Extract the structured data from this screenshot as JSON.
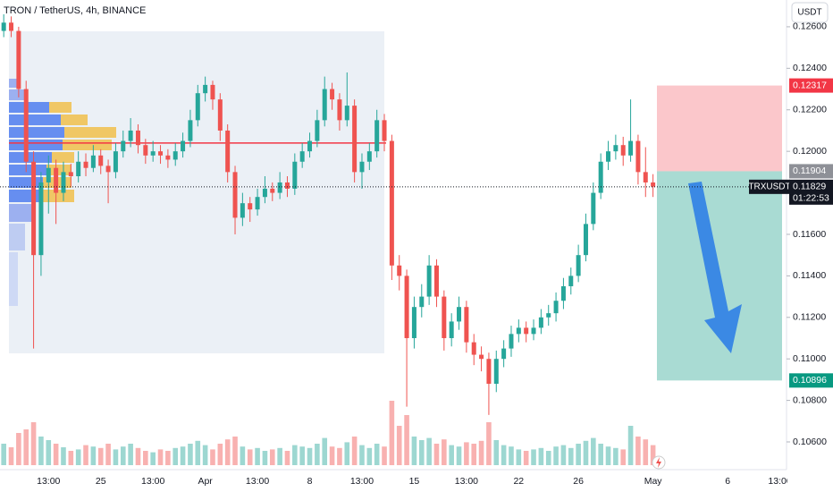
{
  "chart_data": {
    "type": "candlestick",
    "title": "TRON / TetherUS, 4h, BINANCE",
    "currency": "USDT",
    "ylim": [
      0.10488,
      0.12729
    ],
    "yticks": [
      {
        "value": 0.126,
        "label": "0.12600"
      },
      {
        "value": 0.124,
        "label": "0.12400"
      },
      {
        "value": 0.122,
        "label": "0.12200"
      },
      {
        "value": 0.12,
        "label": "0.12000"
      },
      {
        "value": 0.116,
        "label": "0.11600"
      },
      {
        "value": 0.114,
        "label": "0.11400"
      },
      {
        "value": 0.112,
        "label": "0.11200"
      },
      {
        "value": 0.11,
        "label": "0.11000"
      },
      {
        "value": 0.108,
        "label": "0.10800"
      },
      {
        "value": 0.106,
        "label": "0.10600"
      }
    ],
    "categories": [
      null,
      null,
      null,
      null,
      null,
      null,
      "13:00",
      null,
      null,
      null,
      null,
      null,
      null,
      "25",
      null,
      null,
      null,
      null,
      null,
      null,
      "13:00",
      null,
      null,
      null,
      null,
      null,
      null,
      "Apr",
      null,
      null,
      null,
      null,
      null,
      null,
      "13:00",
      null,
      null,
      null,
      null,
      null,
      null,
      "8",
      null,
      null,
      null,
      null,
      null,
      null,
      "13:00",
      null,
      null,
      null,
      null,
      null,
      null,
      "15",
      null,
      null,
      null,
      null,
      null,
      null,
      "13:00",
      null,
      null,
      null,
      null,
      null,
      null,
      "22",
      null,
      null,
      null,
      null,
      null,
      null,
      null,
      "26",
      null,
      null,
      null,
      null,
      null,
      null,
      null,
      null,
      null,
      "May",
      null,
      null,
      null,
      null,
      null,
      null,
      null,
      null,
      null,
      "6",
      null,
      null,
      null,
      null,
      null,
      null,
      "13:00"
    ],
    "candles": [
      [
        0.1258,
        0.1266,
        0.1255,
        0.1262
      ],
      [
        0.1262,
        0.1265,
        0.1255,
        0.1258
      ],
      [
        0.1258,
        0.126,
        0.1226,
        0.123
      ],
      [
        0.123,
        0.1234,
        0.119,
        0.1195
      ],
      [
        0.1195,
        0.12,
        0.1105,
        0.115
      ],
      [
        0.115,
        0.119,
        0.114,
        0.1185
      ],
      [
        0.1185,
        0.1198,
        0.117,
        0.1192
      ],
      [
        0.1192,
        0.1196,
        0.1165,
        0.118
      ],
      [
        0.118,
        0.1195,
        0.1176,
        0.119
      ],
      [
        0.119,
        0.1194,
        0.1183,
        0.1188
      ],
      [
        0.1188,
        0.12,
        0.1185,
        0.1195
      ],
      [
        0.1195,
        0.1199,
        0.1188,
        0.1192
      ],
      [
        0.1192,
        0.1203,
        0.119,
        0.1198
      ],
      [
        0.1198,
        0.1201,
        0.1189,
        0.1193
      ],
      [
        0.1193,
        0.1196,
        0.1175,
        0.119
      ],
      [
        0.119,
        0.1204,
        0.1187,
        0.12
      ],
      [
        0.12,
        0.121,
        0.1197,
        0.1205
      ],
      [
        0.1205,
        0.1216,
        0.1202,
        0.121
      ],
      [
        0.121,
        0.1213,
        0.1199,
        0.1203
      ],
      [
        0.1203,
        0.1206,
        0.1194,
        0.1198
      ],
      [
        0.1198,
        0.1205,
        0.1195,
        0.12
      ],
      [
        0.12,
        0.1203,
        0.1194,
        0.1198
      ],
      [
        0.1198,
        0.1201,
        0.1192,
        0.1196
      ],
      [
        0.1196,
        0.1204,
        0.1193,
        0.12
      ],
      [
        0.12,
        0.1209,
        0.1197,
        0.1205
      ],
      [
        0.1205,
        0.122,
        0.1202,
        0.1215
      ],
      [
        0.1215,
        0.1232,
        0.1212,
        0.1228
      ],
      [
        0.1228,
        0.1236,
        0.1224,
        0.1232
      ],
      [
        0.1232,
        0.1234,
        0.122,
        0.1225
      ],
      [
        0.1225,
        0.1228,
        0.1205,
        0.121
      ],
      [
        0.121,
        0.1213,
        0.1185,
        0.119
      ],
      [
        0.119,
        0.1193,
        0.116,
        0.1168
      ],
      [
        0.1168,
        0.118,
        0.1164,
        0.1175
      ],
      [
        0.1175,
        0.1178,
        0.1166,
        0.1172
      ],
      [
        0.1172,
        0.1182,
        0.1169,
        0.1178
      ],
      [
        0.1178,
        0.1188,
        0.1175,
        0.1182
      ],
      [
        0.1182,
        0.1185,
        0.1176,
        0.118
      ],
      [
        0.118,
        0.119,
        0.1177,
        0.1185
      ],
      [
        0.1185,
        0.1188,
        0.1178,
        0.1182
      ],
      [
        0.1182,
        0.1199,
        0.1179,
        0.1195
      ],
      [
        0.1195,
        0.1204,
        0.1192,
        0.12
      ],
      [
        0.12,
        0.1209,
        0.1197,
        0.1205
      ],
      [
        0.1205,
        0.122,
        0.1202,
        0.1215
      ],
      [
        0.1215,
        0.1236,
        0.1212,
        0.123
      ],
      [
        0.123,
        0.1233,
        0.122,
        0.1225
      ],
      [
        0.1225,
        0.1228,
        0.121,
        0.1215
      ],
      [
        0.1215,
        0.1238,
        0.1212,
        0.1222
      ],
      [
        0.1222,
        0.1225,
        0.1185,
        0.119
      ],
      [
        0.119,
        0.1199,
        0.1182,
        0.1195
      ],
      [
        0.1195,
        0.1204,
        0.1191,
        0.12
      ],
      [
        0.12,
        0.122,
        0.1197,
        0.1215
      ],
      [
        0.1215,
        0.1218,
        0.12,
        0.1205
      ],
      [
        0.1205,
        0.1208,
        0.1138,
        0.1145
      ],
      [
        0.1145,
        0.115,
        0.1133,
        0.114
      ],
      [
        0.114,
        0.1143,
        0.1077,
        0.111
      ],
      [
        0.111,
        0.113,
        0.1105,
        0.1125
      ],
      [
        0.1125,
        0.1136,
        0.112,
        0.113
      ],
      [
        0.113,
        0.115,
        0.1126,
        0.1145
      ],
      [
        0.1145,
        0.1148,
        0.1125,
        0.113
      ],
      [
        0.113,
        0.1133,
        0.1104,
        0.111
      ],
      [
        0.111,
        0.1122,
        0.1106,
        0.1118
      ],
      [
        0.1118,
        0.113,
        0.1114,
        0.1125
      ],
      [
        0.1125,
        0.1128,
        0.1103,
        0.1108
      ],
      [
        0.1108,
        0.1112,
        0.1097,
        0.1102
      ],
      [
        0.1102,
        0.1106,
        0.1094,
        0.11
      ],
      [
        0.11,
        0.1103,
        0.1073,
        0.1088
      ],
      [
        0.1088,
        0.1104,
        0.1084,
        0.11
      ],
      [
        0.11,
        0.1109,
        0.1096,
        0.1105
      ],
      [
        0.1105,
        0.1116,
        0.1101,
        0.1112
      ],
      [
        0.1112,
        0.1119,
        0.1108,
        0.1115
      ],
      [
        0.1115,
        0.1118,
        0.1108,
        0.1112
      ],
      [
        0.1112,
        0.1119,
        0.1109,
        0.1115
      ],
      [
        0.1115,
        0.1124,
        0.1112,
        0.112
      ],
      [
        0.112,
        0.1126,
        0.1116,
        0.1122
      ],
      [
        0.1122,
        0.1132,
        0.1118,
        0.1128
      ],
      [
        0.1128,
        0.1139,
        0.1124,
        0.1135
      ],
      [
        0.1135,
        0.1144,
        0.1131,
        0.114
      ],
      [
        0.114,
        0.1155,
        0.1137,
        0.115
      ],
      [
        0.115,
        0.117,
        0.1147,
        0.1165
      ],
      [
        0.1165,
        0.1185,
        0.1162,
        0.118
      ],
      [
        0.118,
        0.1199,
        0.1177,
        0.1195
      ],
      [
        0.1195,
        0.1205,
        0.1191,
        0.12
      ],
      [
        0.12,
        0.1208,
        0.1196,
        0.1203
      ],
      [
        0.1203,
        0.1207,
        0.1193,
        0.1198
      ],
      [
        0.1198,
        0.1225,
        0.1195,
        0.1205
      ],
      [
        0.1205,
        0.1208,
        0.1184,
        0.119
      ],
      [
        0.119,
        0.1202,
        0.1178,
        0.1185
      ],
      [
        0.1185,
        0.1189,
        0.1178,
        0.1183
      ],
      null,
      null,
      null,
      null,
      null,
      null,
      null,
      null,
      null,
      null,
      null,
      null,
      null,
      null,
      null,
      null,
      null
    ],
    "volume": [
      30,
      25,
      45,
      50,
      60,
      40,
      35,
      30,
      25,
      20,
      22,
      28,
      26,
      24,
      30,
      22,
      26,
      30,
      24,
      20,
      18,
      22,
      20,
      24,
      26,
      30,
      34,
      28,
      22,
      30,
      36,
      40,
      26,
      22,
      24,
      20,
      22,
      24,
      20,
      28,
      26,
      24,
      30,
      38,
      26,
      24,
      32,
      40,
      28,
      24,
      30,
      26,
      90,
      55,
      70,
      40,
      35,
      38,
      30,
      36,
      28,
      26,
      32,
      30,
      34,
      60,
      35,
      28,
      26,
      22,
      20,
      22,
      24,
      20,
      26,
      28,
      24,
      30,
      34,
      38,
      30,
      26,
      24,
      22,
      55,
      40,
      36,
      28,
      null,
      null,
      null,
      null,
      null,
      null,
      null,
      null,
      null,
      null,
      null,
      null,
      null,
      null,
      null,
      null,
      null
    ],
    "poc": 0.1204,
    "stop": 0.12317,
    "entry": 0.11904,
    "target": 0.10896,
    "last": 0.11829,
    "symbol": "TRXUSDT",
    "countdown": "01:22:53"
  }
}
